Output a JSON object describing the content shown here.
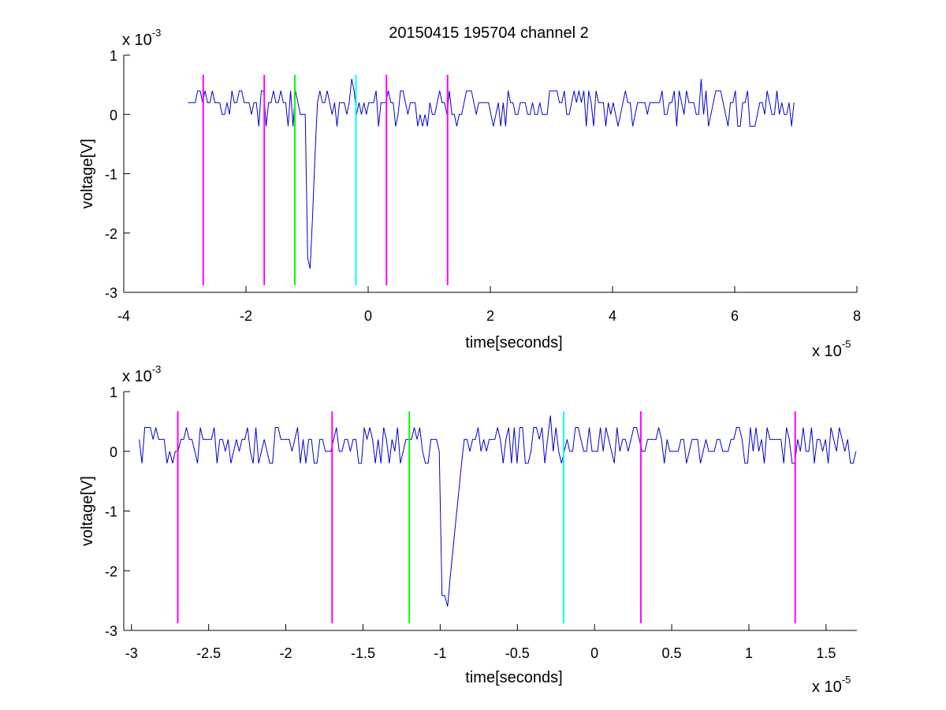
{
  "figure_title": "20150415 195704 channel 2",
  "chart_data": [
    {
      "type": "line",
      "title": "20150415 195704 channel 2",
      "xlabel": "time[seconds]",
      "ylabel": "voltage[V]",
      "x_multiplier": {
        "base": "x 10",
        "exponent": "-5"
      },
      "y_multiplier": {
        "base": "x 10",
        "exponent": "-3"
      },
      "xlim": [
        -4,
        8
      ],
      "ylim": [
        -3,
        1
      ],
      "xticks": [
        -4,
        -2,
        0,
        2,
        4,
        6,
        8
      ],
      "xtick_labels": [
        "-4",
        "-2",
        "0",
        "2",
        "4",
        "6",
        "8"
      ],
      "yticks": [
        -3,
        -2,
        -1,
        0,
        1
      ],
      "ytick_labels": [
        "-3",
        "-2",
        "-1",
        "0",
        "1"
      ],
      "signal": {
        "color": "#0000cc",
        "x_range": [
          -2.95,
          7.0
        ],
        "baseline_levels": [
          -0.2,
          0.0,
          0.2,
          0.4
        ],
        "events": [
          {
            "x": -0.96,
            "y": -2.6
          },
          {
            "x": -0.27,
            "y": 0.6
          },
          {
            "x": 5.47,
            "y": 0.6
          }
        ]
      },
      "markers": [
        {
          "x": -2.7,
          "color": "#ff00ff",
          "y_top": 0.67,
          "y_bottom": -2.88
        },
        {
          "x": -1.7,
          "color": "#ff00ff",
          "y_top": 0.67,
          "y_bottom": -2.88
        },
        {
          "x": -1.2,
          "color": "#00ff00",
          "y_top": 0.67,
          "y_bottom": -2.88
        },
        {
          "x": -0.2,
          "color": "#00ffff",
          "y_top": 0.67,
          "y_bottom": -2.88
        },
        {
          "x": 0.3,
          "color": "#ff00ff",
          "y_top": 0.67,
          "y_bottom": -2.88
        },
        {
          "x": 1.3,
          "color": "#ff00ff",
          "y_top": 0.67,
          "y_bottom": -2.88
        }
      ]
    },
    {
      "type": "line",
      "title": "",
      "xlabel": "time[seconds]",
      "ylabel": "voltage[V]",
      "x_multiplier": {
        "base": "x 10",
        "exponent": "-5"
      },
      "y_multiplier": {
        "base": "x 10",
        "exponent": "-3"
      },
      "xlim": [
        -3.05,
        1.7
      ],
      "ylim": [
        -3,
        1
      ],
      "xticks": [
        -3,
        -2.5,
        -2,
        -1.5,
        -1,
        -0.5,
        0,
        0.5,
        1,
        1.5
      ],
      "xtick_labels": [
        "-3",
        "-2.5",
        "-2",
        "-1.5",
        "-1",
        "-0.5",
        "0",
        "0.5",
        "1",
        "1.5"
      ],
      "yticks": [
        -3,
        -2,
        -1,
        0,
        1
      ],
      "ytick_labels": [
        "-3",
        "-2",
        "-1",
        "0",
        "1"
      ],
      "signal": {
        "color": "#0000cc",
        "x_range": [
          -2.95,
          1.7
        ],
        "baseline_levels": [
          -0.2,
          0.0,
          0.2,
          0.4
        ],
        "events": [
          {
            "x": -0.97,
            "y": -2.6
          },
          {
            "x": -0.28,
            "y": 0.6
          }
        ]
      },
      "markers": [
        {
          "x": -2.7,
          "color": "#ff00ff",
          "y_top": 0.67,
          "y_bottom": -2.88
        },
        {
          "x": -1.7,
          "color": "#ff00ff",
          "y_top": 0.67,
          "y_bottom": -2.88
        },
        {
          "x": -1.2,
          "color": "#00ff00",
          "y_top": 0.67,
          "y_bottom": -2.88
        },
        {
          "x": -0.2,
          "color": "#00ffff",
          "y_top": 0.67,
          "y_bottom": -2.88
        },
        {
          "x": 0.3,
          "color": "#ff00ff",
          "y_top": 0.67,
          "y_bottom": -2.88
        },
        {
          "x": 1.3,
          "color": "#ff00ff",
          "y_top": 0.67,
          "y_bottom": -2.88
        }
      ]
    }
  ]
}
